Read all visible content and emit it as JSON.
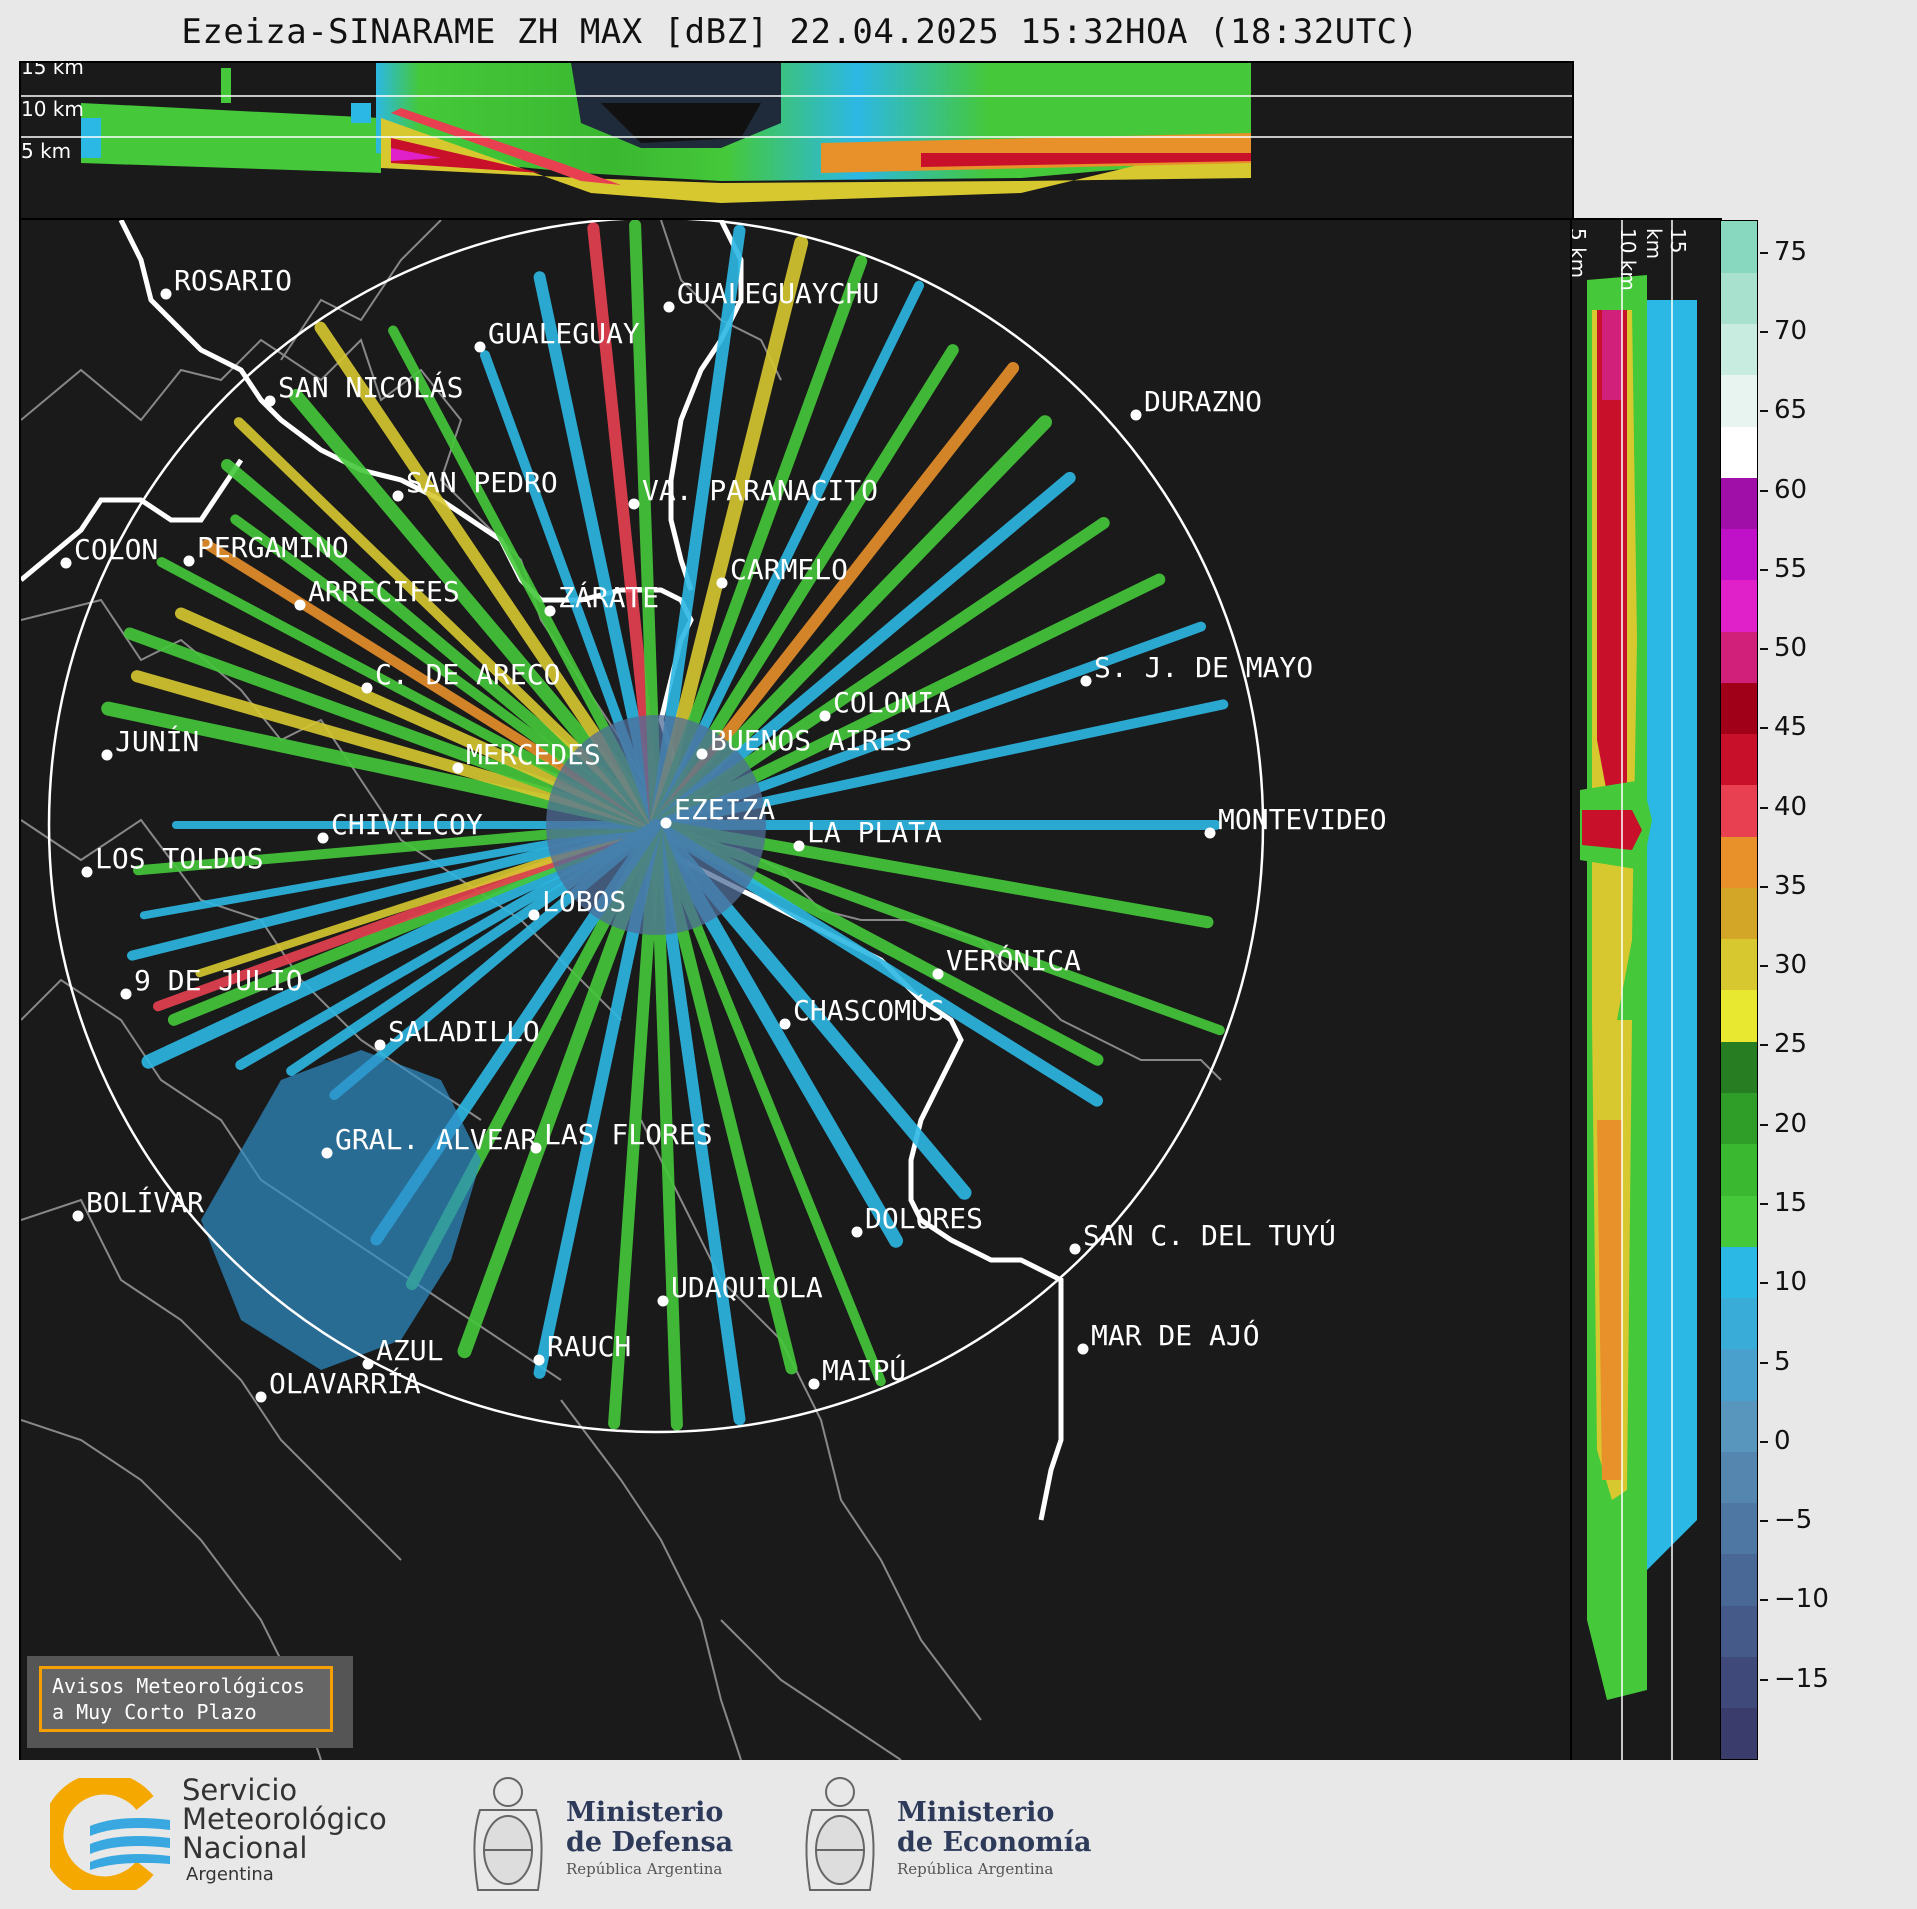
{
  "title": "Ezeiza-SINARAME ZH MAX [dBZ] 22.04.2025 15:32HOA (18:32UTC)",
  "top_panel": {
    "altitude_labels": [
      "15 km",
      "10 km",
      "5 km"
    ]
  },
  "side_panel": {
    "altitude_labels": [
      "5 km",
      "10 km",
      "15 km"
    ]
  },
  "colorbar": {
    "ticks": [
      "75",
      "70",
      "65",
      "60",
      "55",
      "50",
      "45",
      "40",
      "35",
      "30",
      "25",
      "20",
      "15",
      "10",
      "5",
      "0",
      "−5",
      "−10",
      "−15"
    ],
    "tick_values": [
      75,
      70,
      65,
      60,
      55,
      50,
      45,
      40,
      35,
      30,
      25,
      20,
      15,
      10,
      5,
      0,
      -5,
      -10,
      -15
    ],
    "range": [
      -20,
      77
    ],
    "colors": [
      "#3a3d6b",
      "#3f4a7a",
      "#455a88",
      "#4a6895",
      "#4f77a3",
      "#5486b0",
      "#5896be",
      "#4aa0cc",
      "#3aacd8",
      "#2cb8e4",
      "#45c83a",
      "#3ab830",
      "#2f9e28",
      "#267d22",
      "#e8e830",
      "#d8c830",
      "#d4a628",
      "#e8902a",
      "#e84050",
      "#c8102a",
      "#a00018",
      "#d0207a",
      "#e020c8",
      "#c010c8",
      "#a010a8",
      "#ffffff",
      "#e8f4f0",
      "#c8ecdf",
      "#a8e2cf",
      "#88d8bf"
    ]
  },
  "radar_center": "EZEIZA",
  "cities": [
    {
      "name": "ROSARIO",
      "dot": [
        147,
        294
      ],
      "label": [
        155,
        290
      ]
    },
    {
      "name": "GUALEGUAYCHU",
      "dot": [
        650,
        307
      ],
      "label": [
        658,
        303
      ]
    },
    {
      "name": "GUALEGUAY",
      "dot": [
        461,
        347
      ],
      "label": [
        469,
        343
      ]
    },
    {
      "name": "SAN NICOLÁS",
      "dot": [
        251,
        401
      ],
      "label": [
        259,
        397
      ]
    },
    {
      "name": "DURAZNO",
      "dot": [
        1117,
        415
      ],
      "label": [
        1125,
        411
      ]
    },
    {
      "name": "SAN PEDRO",
      "dot": [
        379,
        496
      ],
      "label": [
        387,
        492
      ]
    },
    {
      "name": "VA. PARANACITO",
      "dot": [
        615,
        504
      ],
      "label": [
        623,
        500
      ]
    },
    {
      "name": "COLON",
      "dot": [
        47,
        563
      ],
      "label": [
        55,
        559
      ]
    },
    {
      "name": "PERGAMINO",
      "dot": [
        170,
        561
      ],
      "label": [
        178,
        557
      ]
    },
    {
      "name": "CARMELO",
      "dot": [
        703,
        583
      ],
      "label": [
        711,
        579
      ]
    },
    {
      "name": "ARRECIFES",
      "dot": [
        281,
        605
      ],
      "label": [
        289,
        601
      ]
    },
    {
      "name": "ZÁRATE",
      "dot": [
        531,
        611
      ],
      "label": [
        539,
        607
      ]
    },
    {
      "name": "S. J. DE MAYO",
      "dot": [
        1067,
        681
      ],
      "label": [
        1075,
        677
      ]
    },
    {
      "name": "C. DE ARECO",
      "dot": [
        348,
        688
      ],
      "label": [
        356,
        684
      ]
    },
    {
      "name": "COLONIA",
      "dot": [
        806,
        716
      ],
      "label": [
        814,
        712
      ]
    },
    {
      "name": "BUENOS AIRES",
      "dot": [
        683,
        754
      ],
      "label": [
        691,
        750
      ]
    },
    {
      "name": "JUNÍN",
      "dot": [
        88,
        755
      ],
      "label": [
        96,
        751
      ]
    },
    {
      "name": "MERCEDES",
      "dot": [
        439,
        768
      ],
      "label": [
        447,
        764
      ]
    },
    {
      "name": "EZEIZA",
      "dot": [
        647,
        823
      ],
      "label": [
        655,
        819
      ]
    },
    {
      "name": "MONTEVIDEO",
      "dot": [
        1191,
        833
      ],
      "label": [
        1199,
        829
      ]
    },
    {
      "name": "CHIVILCOY",
      "dot": [
        304,
        838
      ],
      "label": [
        312,
        834
      ]
    },
    {
      "name": "LA PLATA",
      "dot": [
        780,
        846
      ],
      "label": [
        788,
        842
      ]
    },
    {
      "name": "LOS TOLDOS",
      "dot": [
        68,
        872
      ],
      "label": [
        76,
        868
      ]
    },
    {
      "name": "LOBOS",
      "dot": [
        515,
        915
      ],
      "label": [
        523,
        911
      ]
    },
    {
      "name": "VERÓNICA",
      "dot": [
        919,
        974
      ],
      "label": [
        927,
        970
      ]
    },
    {
      "name": "9 DE JULIO",
      "dot": [
        107,
        994
      ],
      "label": [
        115,
        990
      ]
    },
    {
      "name": "CHASCOMÚS",
      "dot": [
        766,
        1024
      ],
      "label": [
        774,
        1020
      ]
    },
    {
      "name": "SALADILLO",
      "dot": [
        361,
        1045
      ],
      "label": [
        369,
        1041
      ]
    },
    {
      "name": "GRAL. ALVEAR",
      "dot": [
        308,
        1153
      ],
      "label": [
        316,
        1149
      ]
    },
    {
      "name": "LAS FLORES",
      "dot": [
        517,
        1148
      ],
      "label": [
        525,
        1144
      ]
    },
    {
      "name": "BOLÍVAR",
      "dot": [
        59,
        1216
      ],
      "label": [
        67,
        1212
      ]
    },
    {
      "name": "DOLORES",
      "dot": [
        838,
        1232
      ],
      "label": [
        846,
        1228
      ]
    },
    {
      "name": "SAN C. DEL TUYÚ",
      "dot": [
        1056,
        1249
      ],
      "label": [
        1064,
        1245
      ]
    },
    {
      "name": "UDAQUIOLA",
      "dot": [
        644,
        1301
      ],
      "label": [
        652,
        1297
      ]
    },
    {
      "name": "MAR DE AJÓ",
      "dot": [
        1064,
        1349
      ],
      "label": [
        1072,
        1345
      ]
    },
    {
      "name": "RAUCH",
      "dot": [
        520,
        1360
      ],
      "label": [
        528,
        1356
      ]
    },
    {
      "name": "AZUL",
      "dot": [
        349,
        1364
      ],
      "label": [
        357,
        1360
      ]
    },
    {
      "name": "OLAVARRÍA",
      "dot": [
        242,
        1397
      ],
      "label": [
        250,
        1393
      ]
    },
    {
      "name": "MAIPÚ",
      "dot": [
        795,
        1384
      ],
      "label": [
        803,
        1380
      ]
    }
  ],
  "avisos": {
    "line1": "Avisos Meteorológicos",
    "line2": "a Muy Corto Plazo"
  },
  "footer": {
    "smn": {
      "line1": "Servicio",
      "line2": "Meteorológico",
      "line3": "Nacional",
      "line4": "Argentina"
    },
    "defensa": {
      "line1": "Ministerio",
      "line2": "de Defensa",
      "line3": "República Argentina"
    },
    "economia": {
      "line1": "Ministerio",
      "line2": "de Economía",
      "line3": "República Argentina"
    }
  }
}
